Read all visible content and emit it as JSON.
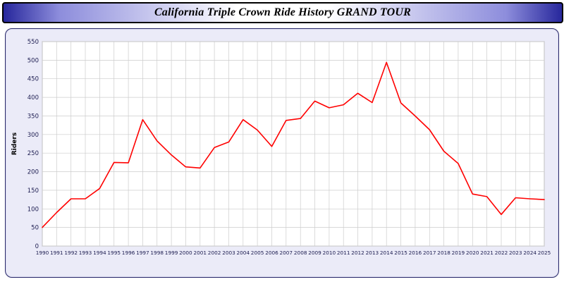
{
  "header": {
    "title": "California Triple Crown Ride History GRAND TOUR"
  },
  "colors": {
    "line": "#ff0000",
    "grid": "#cccccc",
    "plot_bg": "#ffffff",
    "plot_border": "#aaaaaa",
    "panel_bg": "#ebebf8",
    "tick_label": "#1c1c50",
    "axis_label": "#000000"
  },
  "chart_data": {
    "type": "line",
    "title": "California Triple Crown Ride History GRAND TOUR",
    "xlabel": "",
    "ylabel": "Riders",
    "ylim": [
      0,
      550
    ],
    "ytick_step": 50,
    "grid": true,
    "legend": "none",
    "x": [
      1990,
      1991,
      1992,
      1993,
      1994,
      1995,
      1996,
      1997,
      1998,
      1999,
      2000,
      2001,
      2002,
      2003,
      2004,
      2005,
      2006,
      2007,
      2008,
      2009,
      2010,
      2011,
      2012,
      2013,
      2014,
      2015,
      2016,
      2017,
      2018,
      2019,
      2020,
      2021,
      2022,
      2023,
      2024,
      2025
    ],
    "series": [
      {
        "name": "Riders",
        "color": "#ff0000",
        "values": [
          50,
          90,
          127,
          127,
          155,
          225,
          224,
          340,
          283,
          245,
          213,
          210,
          265,
          280,
          340,
          312,
          268,
          338,
          343,
          390,
          372,
          380,
          411,
          386,
          494,
          385,
          350,
          313,
          255,
          222,
          140,
          133,
          85,
          130,
          127,
          125
        ]
      }
    ]
  }
}
